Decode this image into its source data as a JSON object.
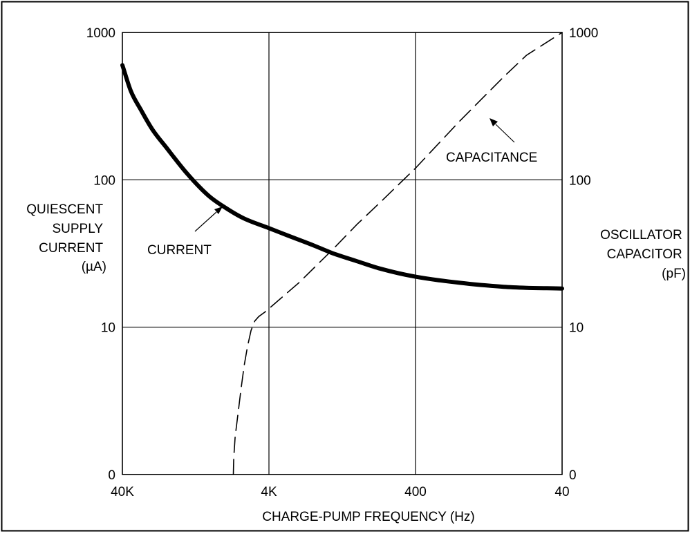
{
  "chart_data": {
    "type": "line",
    "x_axis": {
      "label": "CHARGE-PUMP FREQUENCY (Hz)",
      "scale": "log",
      "direction": "decreasing",
      "range": [
        40000,
        40
      ],
      "ticks": [
        {
          "value": 40000,
          "label": "40K"
        },
        {
          "value": 4000,
          "label": "4K"
        },
        {
          "value": 400,
          "label": "400"
        },
        {
          "value": 40,
          "label": "40"
        }
      ]
    },
    "y_left": {
      "label": [
        "QUIESCENT",
        "SUPPLY",
        "CURRENT",
        "(µA)"
      ],
      "scale": "log",
      "range": [
        1,
        1000
      ],
      "ticks": [
        {
          "value": 1,
          "label": "0"
        },
        {
          "value": 10,
          "label": "10"
        },
        {
          "value": 100,
          "label": "100"
        },
        {
          "value": 1000,
          "label": "1000"
        }
      ]
    },
    "y_right": {
      "label": [
        "OSCILLATOR",
        "CAPACITOR",
        "(pF)"
      ],
      "scale": "log",
      "range": [
        1,
        1000
      ],
      "ticks": [
        {
          "value": 1,
          "label": "0"
        },
        {
          "value": 10,
          "label": "10"
        },
        {
          "value": 100,
          "label": "100"
        },
        {
          "value": 1000,
          "label": "1000"
        }
      ]
    },
    "grid": true,
    "series": [
      {
        "name": "CURRENT",
        "axis": "left",
        "style": "solid-thick",
        "x": [
          40000,
          35000,
          30000,
          25000,
          20000,
          15000,
          12000,
          10000,
          8000,
          6000,
          4000,
          3000,
          2000,
          1500,
          1000,
          700,
          400,
          200,
          100,
          70,
          40
        ],
        "y": [
          600,
          400,
          300,
          220,
          165,
          115,
          90,
          76,
          65,
          55,
          47,
          42,
          36,
          32,
          28,
          25,
          22,
          20,
          18.8,
          18.5,
          18.3
        ]
      },
      {
        "name": "CAPACITANCE",
        "axis": "right",
        "style": "dashed",
        "x": [
          7000,
          6950,
          6800,
          6500,
          6200,
          5900,
          5600,
          5300,
          5000,
          4700,
          4200,
          3500,
          2500,
          1500,
          1000,
          700,
          400,
          200,
          100,
          70,
          40
        ],
        "y": [
          1,
          1.3,
          1.8,
          2.6,
          3.8,
          5.5,
          7.4,
          9.5,
          11,
          11.8,
          12.8,
          15,
          20,
          33,
          50,
          70,
          120,
          250,
          500,
          700,
          1000
        ]
      }
    ],
    "annotations": [
      {
        "text": "CURRENT",
        "x": 11000,
        "y": 37,
        "arrow_to": {
          "x": 7500,
          "y": 74
        }
      },
      {
        "text": "CAPACITANCE",
        "x": 150,
        "y": 130,
        "arrow_to": {
          "x": 250,
          "y": 460
        }
      }
    ]
  }
}
